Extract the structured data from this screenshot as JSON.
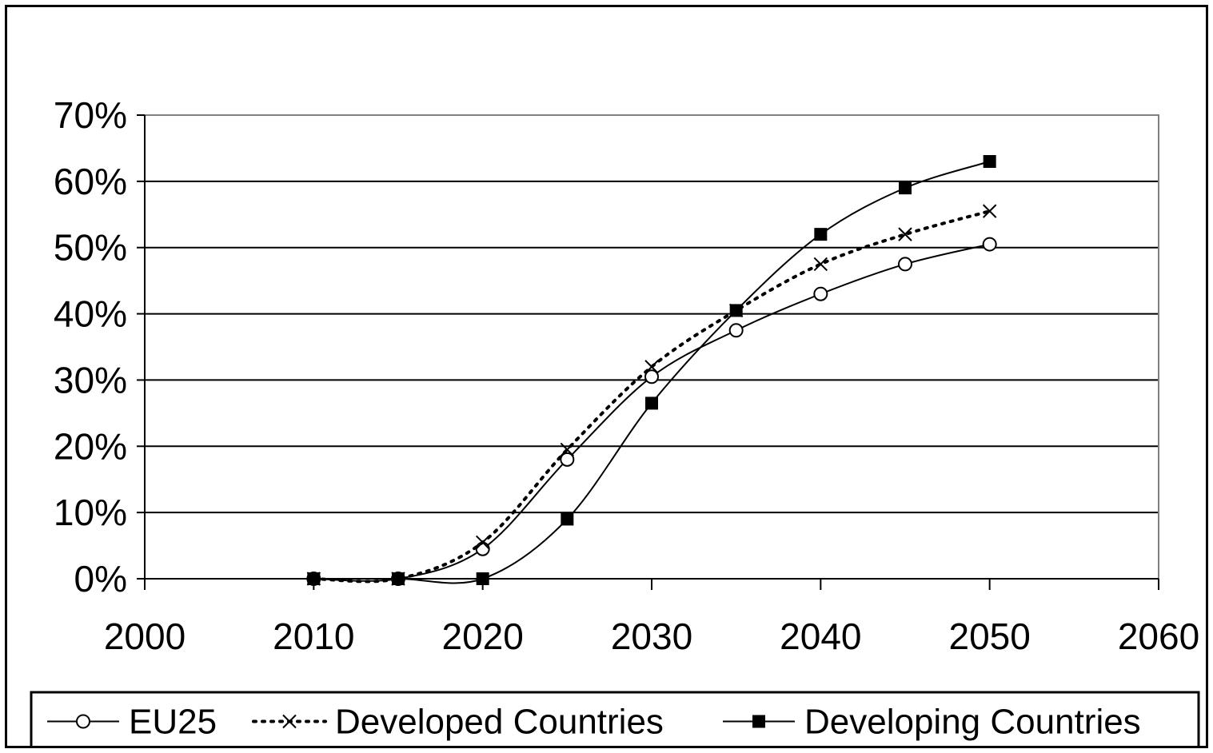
{
  "chart_data": {
    "type": "line",
    "title": "",
    "xlabel": "",
    "ylabel": "",
    "xlim": [
      2000,
      2060
    ],
    "ylim": [
      0,
      0.7
    ],
    "x_ticks": [
      2000,
      2010,
      2020,
      2030,
      2040,
      2050,
      2060
    ],
    "x_tick_labels": [
      "2000",
      "2010",
      "2020",
      "2030",
      "2040",
      "2050",
      "2060"
    ],
    "y_ticks": [
      0,
      0.1,
      0.2,
      0.3,
      0.4,
      0.5,
      0.6,
      0.7
    ],
    "y_tick_labels": [
      "0%",
      "10%",
      "20%",
      "30%",
      "40%",
      "50%",
      "60%",
      "70%"
    ],
    "grid": "horizontal",
    "legend_position": "bottom",
    "x": [
      2010,
      2015,
      2020,
      2025,
      2030,
      2035,
      2040,
      2045,
      2050
    ],
    "series": [
      {
        "name": "EU25",
        "marker": "open-circle",
        "line_style": "solid",
        "values": [
          0.0,
          0.0,
          0.045,
          0.18,
          0.305,
          0.375,
          0.43,
          0.475,
          0.505
        ]
      },
      {
        "name": "Developed Countries",
        "marker": "cross",
        "line_style": "dotted",
        "values": [
          0.0,
          0.0,
          0.055,
          0.195,
          0.32,
          0.405,
          0.475,
          0.52,
          0.555
        ]
      },
      {
        "name": "Developing Countries",
        "marker": "filled-square",
        "line_style": "solid",
        "values": [
          0.0,
          0.0,
          0.0,
          0.09,
          0.265,
          0.405,
          0.52,
          0.59,
          0.63
        ]
      }
    ],
    "colors": {
      "line": "#000000",
      "grid": "#000000",
      "plot_border": "#808080",
      "background": "#ffffff"
    }
  }
}
